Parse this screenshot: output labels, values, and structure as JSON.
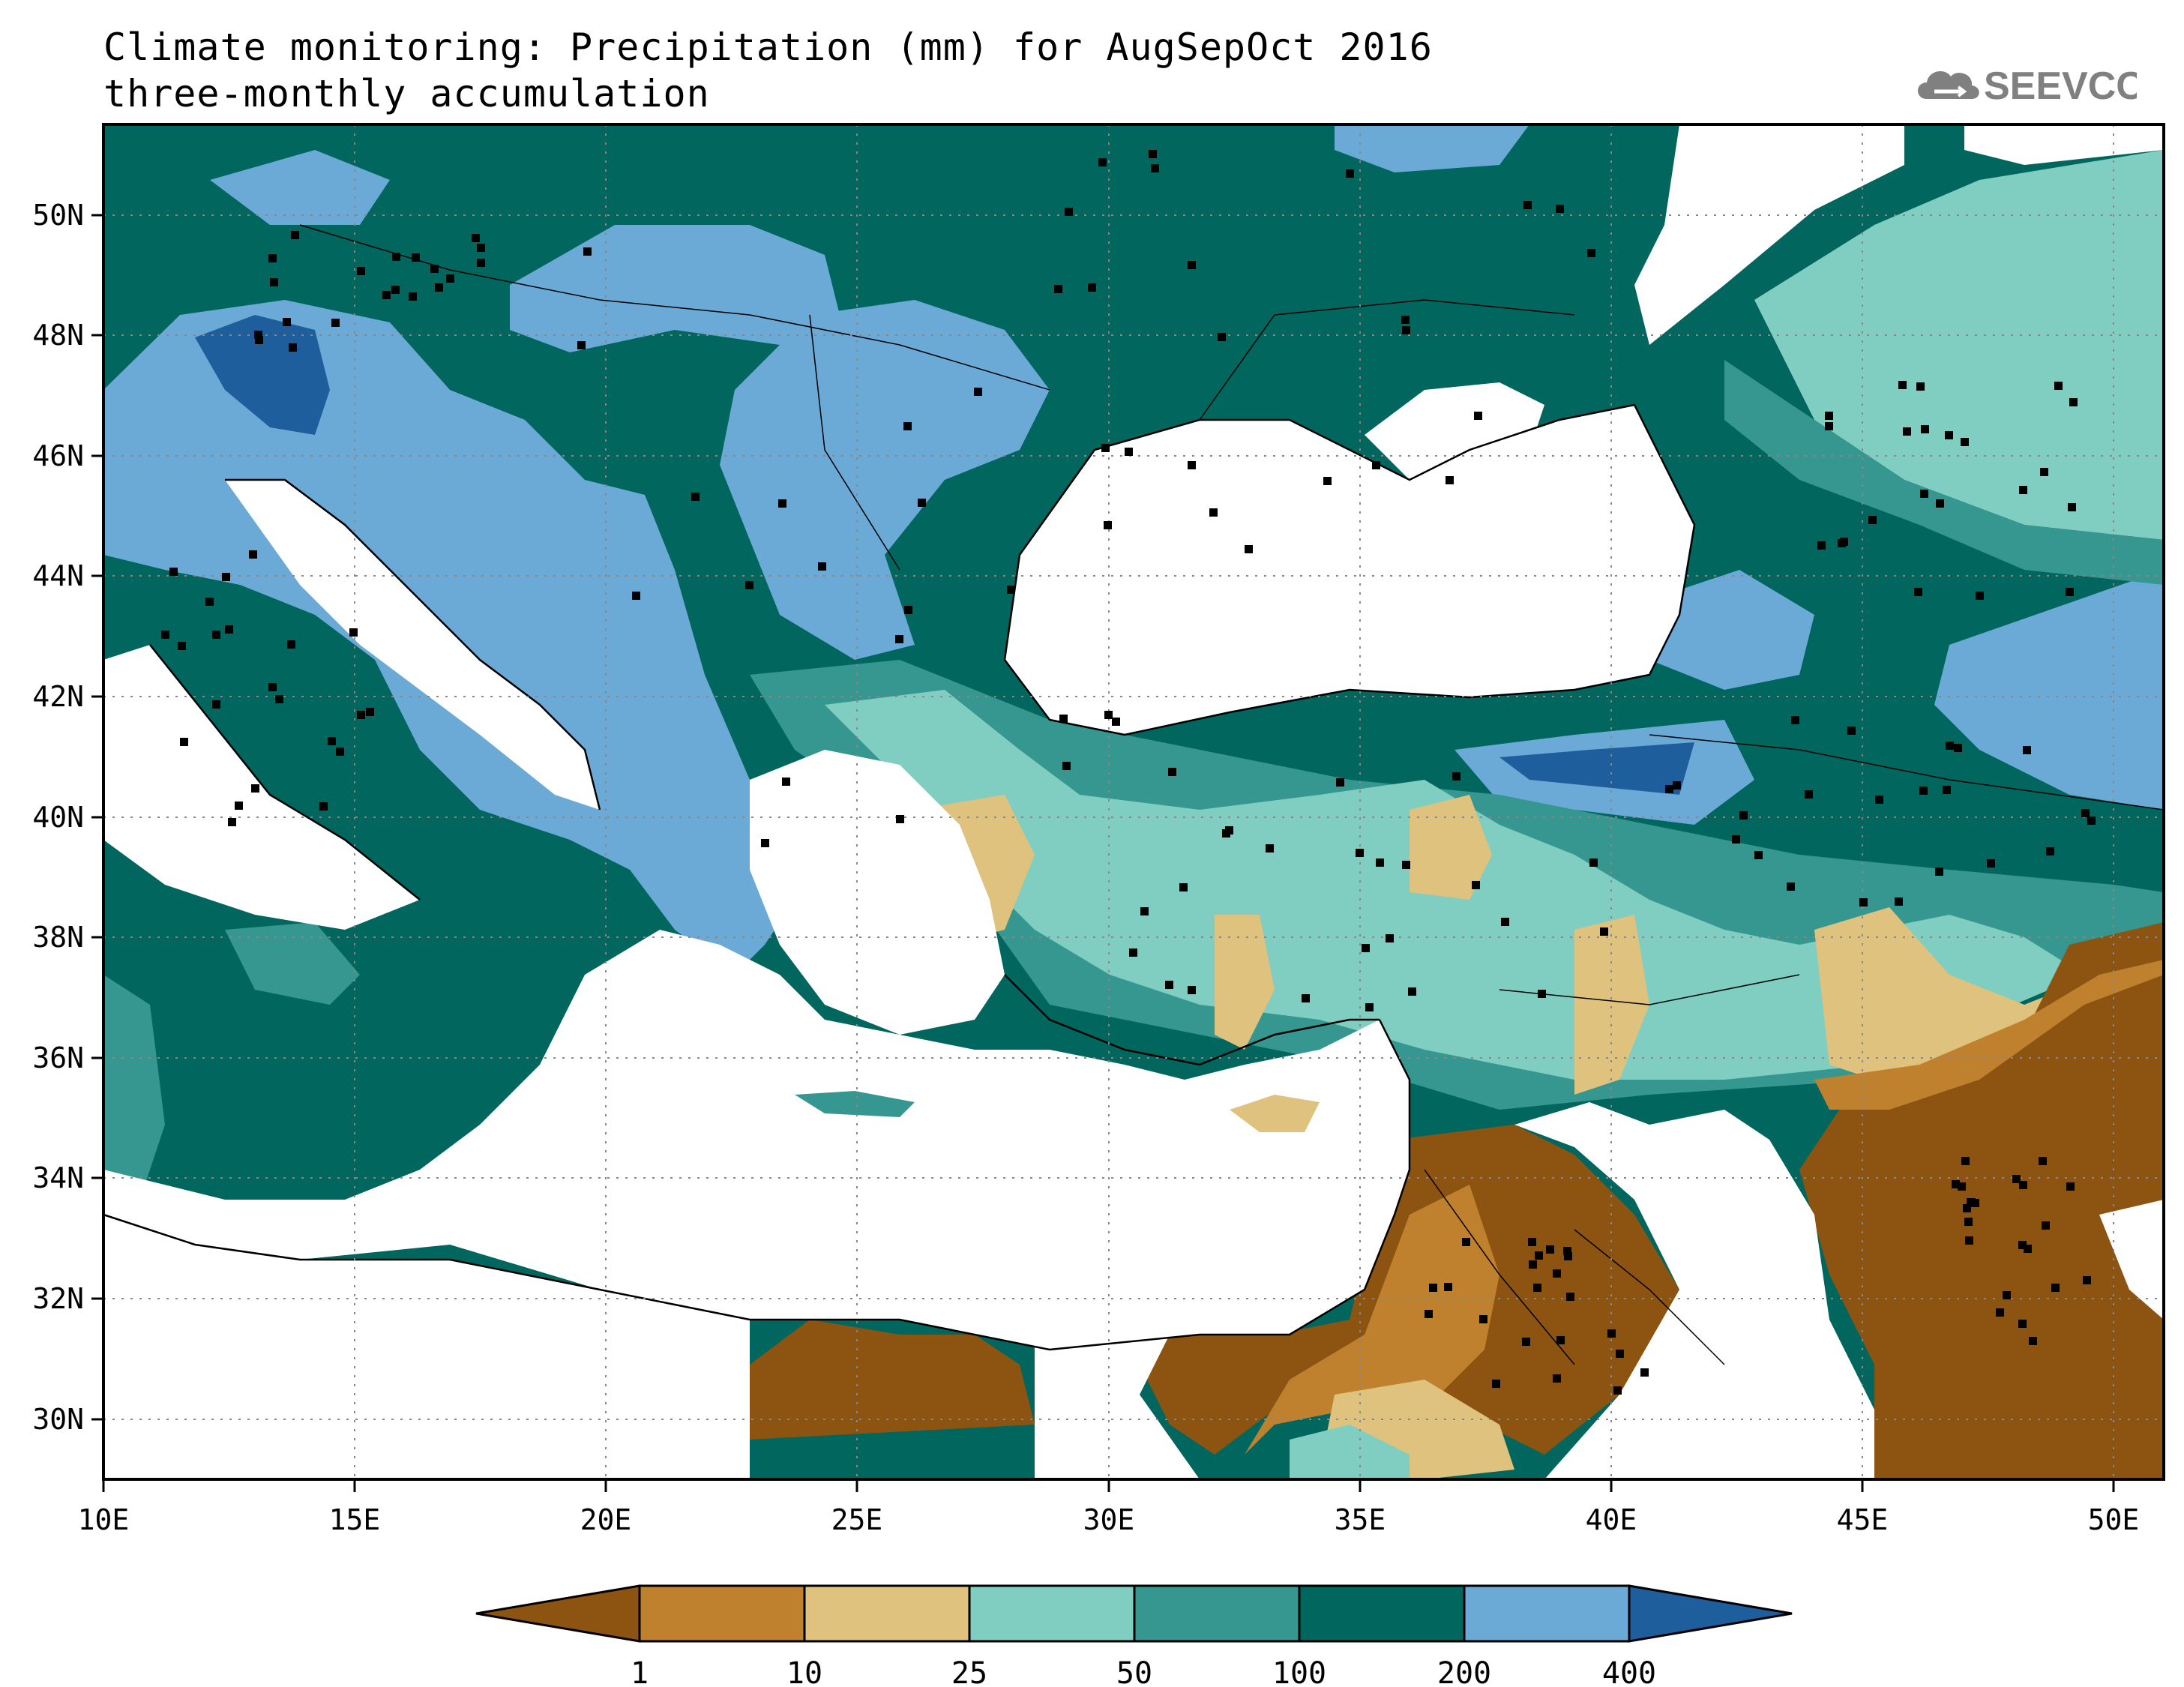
{
  "header": {
    "title_line1": "Climate monitoring: Precipitation (mm) for AugSepOct 2016",
    "title_line2": "three-monthly accumulation"
  },
  "logo": {
    "text": "SEEVCCC",
    "icon": "cloud-icon"
  },
  "map": {
    "lon_range": [
      10,
      51
    ],
    "lat_range": [
      29,
      51.5
    ],
    "x_tick_labels": [
      "10E",
      "15E",
      "20E",
      "25E",
      "30E",
      "35E",
      "40E",
      "45E",
      "50E"
    ],
    "y_tick_labels": [
      "30N",
      "32N",
      "34N",
      "36N",
      "38N",
      "40N",
      "42N",
      "44N",
      "46N",
      "48N",
      "50N"
    ],
    "grid": "dotted"
  },
  "colorbar": {
    "thresholds": [
      "1",
      "10",
      "25",
      "50",
      "100",
      "200",
      "400"
    ],
    "colors": [
      "#8c5410",
      "#bf812d",
      "#dfc27d",
      "#80cdc1",
      "#35978f",
      "#01665e",
      "#6ba9d6",
      "#1f5e9c"
    ]
  },
  "colors": {
    "very_dry": "#8c5410",
    "dry": "#bf812d",
    "light_dry": "#dfc27d",
    "light_teal": "#80cdc1",
    "teal": "#35978f",
    "dark_teal": "#01665e",
    "light_blue": "#6ba9d6",
    "dark_blue": "#1f5e9c"
  }
}
